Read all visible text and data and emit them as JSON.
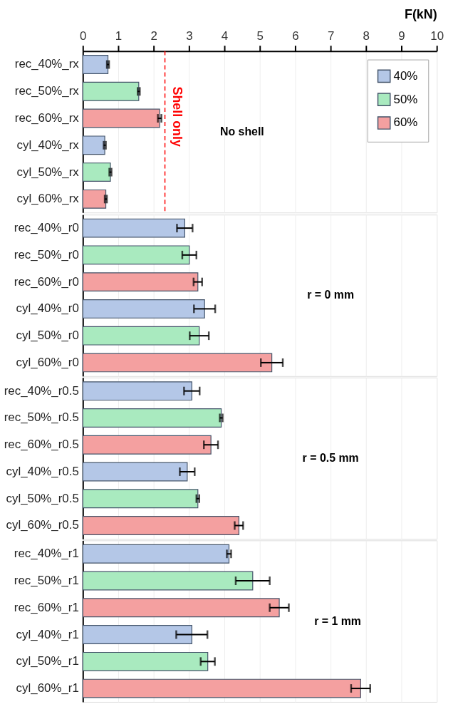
{
  "chart_data": [
    {
      "type": "bar",
      "orientation": "horizontal",
      "xlabel": "F(kN)",
      "xlim": [
        0,
        10
      ],
      "xticks": [
        0,
        1,
        2,
        3,
        4,
        5,
        6,
        7,
        8,
        9,
        10
      ],
      "grid": "x",
      "legend": "top right",
      "categories": [
        "rec_40%_rx",
        "rec_50%_rx",
        "rec_60%_rx",
        "cyl_40%_rx",
        "cyl_50%_rx",
        "cyl_60%_rx"
      ],
      "series": [
        {
          "name": "40%",
          "color": "#b4c7e7",
          "values": [
            0.71,
            null,
            null,
            0.62,
            null,
            null
          ],
          "errors": [
            0.03,
            null,
            null,
            0.03,
            null,
            null
          ]
        },
        {
          "name": "50%",
          "color": "#a9eabf",
          "values": [
            null,
            1.58,
            null,
            null,
            0.78,
            null
          ],
          "errors": [
            null,
            0.03,
            null,
            null,
            0.03,
            null
          ]
        },
        {
          "name": "60%",
          "color": "#f4a0a0",
          "values": [
            null,
            null,
            2.17,
            null,
            null,
            0.65
          ],
          "errors": [
            null,
            null,
            0.05,
            null,
            null,
            0.03
          ]
        }
      ],
      "ref_lines": [
        {
          "axis": "x",
          "value": 2.32,
          "label": "Shell only",
          "color": "#ff0000",
          "line_style": "dashed"
        }
      ],
      "annotations": [
        "No shell"
      ]
    },
    {
      "type": "bar",
      "orientation": "horizontal",
      "xlim": [
        0,
        10
      ],
      "xticks": [
        0,
        1,
        2,
        3,
        4,
        5,
        6,
        7,
        8,
        9,
        10
      ],
      "grid": "x",
      "tick_labels": "y",
      "categories": [
        "rec_40%_r0",
        "rec_50%_r0",
        "rec_60%_r0",
        "cyl_40%_r0",
        "cyl_50%_r0",
        "cyl_60%_r0"
      ],
      "series": [
        {
          "color": "#b4c7e7",
          "values": [
            2.88,
            null,
            null,
            3.44,
            null,
            null
          ],
          "errors": [
            0.22,
            null,
            null,
            0.3,
            null,
            null
          ]
        },
        {
          "color": "#a9eabf",
          "values": [
            null,
            3.01,
            null,
            null,
            3.29,
            null
          ],
          "errors": [
            null,
            0.2,
            null,
            null,
            0.27,
            null
          ]
        },
        {
          "color": "#f4a0a0",
          "values": [
            null,
            null,
            3.25,
            null,
            null,
            5.34
          ],
          "errors": [
            null,
            null,
            0.12,
            null,
            null,
            0.31
          ]
        }
      ],
      "annotations": [
        "r = 0 mm"
      ]
    },
    {
      "type": "bar",
      "orientation": "horizontal",
      "xlim": [
        0,
        10
      ],
      "xticks": [
        0,
        1,
        2,
        3,
        4,
        5,
        6,
        7,
        8,
        9,
        10
      ],
      "grid": "x",
      "tick_labels": "y",
      "categories": [
        "rec_40%_r0.5",
        "rec_50%_r0.5",
        "rec_60%_r0.5",
        "cyl_40%_r0.5",
        "cyl_50%_r0.5",
        "cyl_60%_r0.5"
      ],
      "series": [
        {
          "color": "#b4c7e7",
          "values": [
            3.08,
            null,
            null,
            2.95,
            null,
            null
          ],
          "errors": [
            0.22,
            null,
            null,
            0.21,
            null,
            null
          ]
        },
        {
          "color": "#a9eabf",
          "values": [
            null,
            3.91,
            null,
            null,
            3.25,
            null
          ],
          "errors": [
            null,
            0.04,
            null,
            null,
            0.04,
            null
          ]
        },
        {
          "color": "#f4a0a0",
          "values": [
            null,
            null,
            3.62,
            null,
            null,
            4.41
          ],
          "errors": [
            null,
            null,
            0.2,
            null,
            null,
            0.12
          ]
        }
      ],
      "annotations": [
        "r = 0.5 mm"
      ]
    },
    {
      "type": "bar",
      "orientation": "horizontal",
      "xlim": [
        0,
        10
      ],
      "xticks": [
        0,
        1,
        2,
        3,
        4,
        5,
        6,
        7,
        8,
        9,
        10
      ],
      "grid": "x",
      "tick_labels": "y",
      "categories": [
        "rec_40%_r1",
        "rec_50%_r1",
        "rec_60%_r1",
        "cyl_40%_r1",
        "cyl_50%_r1",
        "cyl_60%_r1"
      ],
      "series": [
        {
          "color": "#b4c7e7",
          "values": [
            4.13,
            null,
            null,
            3.08,
            null,
            null
          ],
          "errors": [
            0.06,
            null,
            null,
            0.44,
            null,
            null
          ]
        },
        {
          "color": "#a9eabf",
          "values": [
            null,
            4.8,
            null,
            null,
            3.53,
            null
          ],
          "errors": [
            null,
            0.48,
            null,
            null,
            0.2,
            null
          ]
        },
        {
          "color": "#f4a0a0",
          "values": [
            null,
            null,
            5.55,
            null,
            null,
            7.85
          ],
          "errors": [
            null,
            null,
            0.27,
            null,
            null,
            0.27
          ]
        }
      ],
      "annotations": [
        "r = 1 mm"
      ]
    }
  ]
}
